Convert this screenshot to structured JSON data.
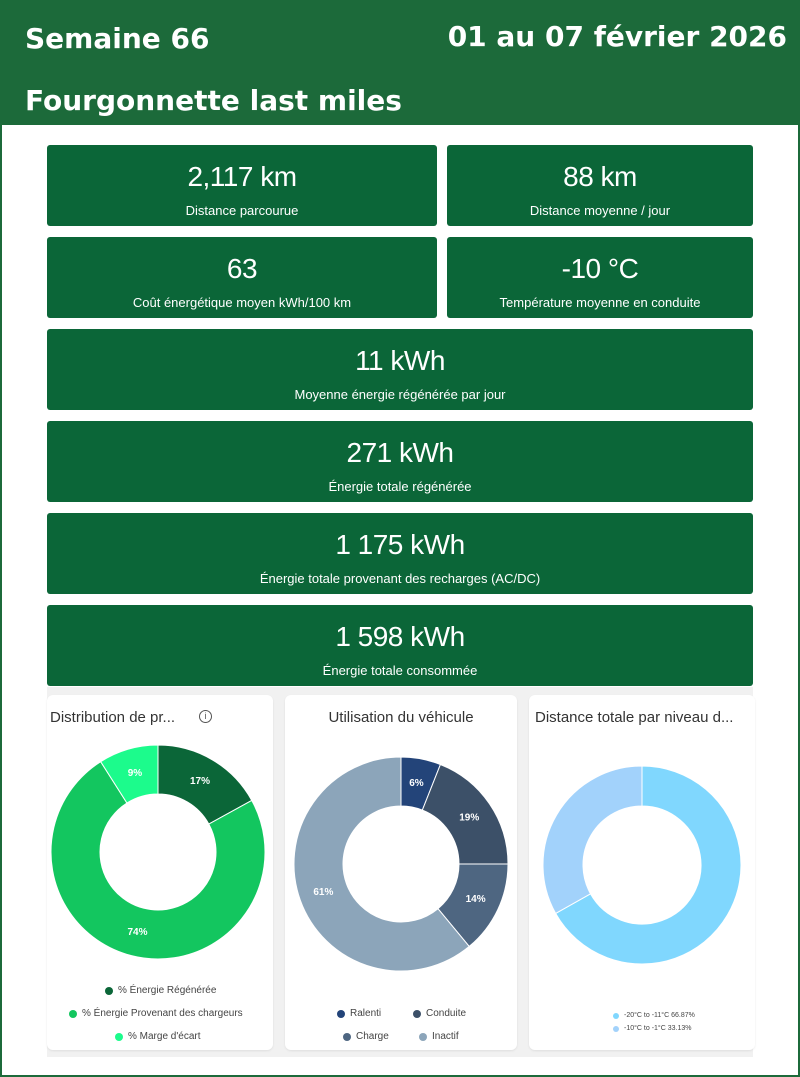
{
  "header": {
    "week": "Semaine 66",
    "dates": "01 au 07 février 2026",
    "vehicle": "Fourgonnette last miles"
  },
  "kpis": [
    {
      "value": "2,117 km",
      "label": "Distance parcourue"
    },
    {
      "value": "88 km",
      "label": "Distance moyenne / jour"
    },
    {
      "value": "63",
      "label": "Coût énergétique moyen kWh/100 km"
    },
    {
      "value": "-10 °C",
      "label": "Température moyenne en conduite"
    },
    {
      "value": "11 kWh",
      "label": "Moyenne énergie régénérée par jour"
    },
    {
      "value": "271 kWh",
      "label": "Énergie totale régénérée"
    },
    {
      "value": "1 175 kWh",
      "label": "Énergie totale provenant des recharges (AC/DC)"
    },
    {
      "value": "1 598 kWh",
      "label": "Énergie totale consommée"
    }
  ],
  "chart_data": [
    {
      "type": "pie",
      "title": "Distribution de pr...",
      "info_icon": "info-icon",
      "categories": [
        "% Énergie Régénérée",
        "% Énergie Provenant des chargeurs",
        "% Marge d'écart"
      ],
      "values": [
        17,
        74,
        9
      ],
      "labels": [
        "17%",
        "74%",
        "9%"
      ],
      "colors": [
        "#0b6638",
        "#13c65f",
        "#1cfb8c"
      ],
      "legend": "bottom"
    },
    {
      "type": "pie",
      "title": "Utilisation du véhicule",
      "categories": [
        "Ralenti",
        "Conduite",
        "Charge",
        "Inactif"
      ],
      "values": [
        6,
        19,
        14,
        61
      ],
      "labels": [
        "6%",
        "19%",
        "14%",
        "61%"
      ],
      "colors": [
        "#234479",
        "#3c5068",
        "#4e6681",
        "#8ca5ba"
      ],
      "legend": "bottom"
    },
    {
      "type": "pie",
      "title": "Distance totale par niveau d...",
      "categories": [
        "-20°C to -11°C 66.87%",
        "-10°C to -1°C 33.13%"
      ],
      "values": [
        66.87,
        33.13
      ],
      "labels": [
        "",
        ""
      ],
      "colors": [
        "#80d7fe",
        "#a2d2fb"
      ],
      "legend": "bottom"
    }
  ]
}
